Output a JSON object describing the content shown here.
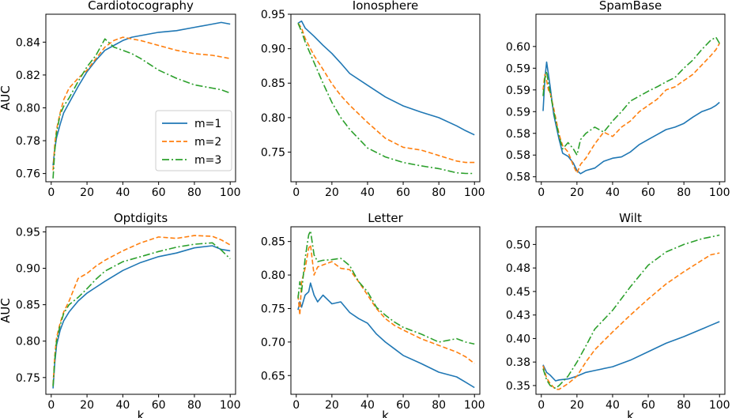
{
  "figure": {
    "xlabel": "k",
    "ylabel": "AUC"
  },
  "legend": {
    "entries": [
      "m=1",
      "m=2",
      "m=3"
    ],
    "placement": "lower right of first panel"
  },
  "series_styles": [
    {
      "name": "m=1",
      "color": "#1f77b4",
      "dash": "solid"
    },
    {
      "name": "m=2",
      "color": "#ff7f0e",
      "dash": "dashed"
    },
    {
      "name": "m=3",
      "color": "#2ca02c",
      "dash": "dashdot"
    }
  ],
  "chart_data": [
    {
      "type": "line",
      "title": "Cardiotocography",
      "xlabel": "",
      "ylabel": "AUC",
      "xlim": [
        -3,
        103
      ],
      "ylim": [
        0.755,
        0.857
      ],
      "xticks": [
        0,
        20,
        40,
        60,
        80,
        100
      ],
      "yticks": [
        0.76,
        0.78,
        0.8,
        0.82,
        0.84
      ],
      "ytick_labels": [
        "0.76",
        "0.78",
        "0.80",
        "0.82",
        "0.84"
      ],
      "x": [
        1,
        2,
        3,
        5,
        7,
        10,
        15,
        20,
        25,
        30,
        35,
        40,
        45,
        50,
        60,
        70,
        80,
        90,
        95,
        100
      ],
      "series": [
        {
          "name": "m=1",
          "values": [
            0.765,
            0.775,
            0.782,
            0.79,
            0.797,
            0.803,
            0.813,
            0.822,
            0.829,
            0.835,
            0.838,
            0.841,
            0.843,
            0.844,
            0.846,
            0.847,
            0.849,
            0.851,
            0.852,
            0.851
          ]
        },
        {
          "name": "m=2",
          "values": [
            0.762,
            0.778,
            0.787,
            0.797,
            0.805,
            0.812,
            0.818,
            0.823,
            0.83,
            0.837,
            0.841,
            0.843,
            0.842,
            0.841,
            0.838,
            0.835,
            0.833,
            0.832,
            0.831,
            0.83
          ]
        },
        {
          "name": "m=3",
          "values": [
            0.757,
            0.774,
            0.785,
            0.796,
            0.801,
            0.806,
            0.816,
            0.825,
            0.832,
            0.842,
            0.837,
            0.835,
            0.833,
            0.83,
            0.823,
            0.818,
            0.814,
            0.812,
            0.811,
            0.809
          ]
        }
      ]
    },
    {
      "type": "line",
      "title": "Ionosphere",
      "xlabel": "",
      "ylabel": "",
      "xlim": [
        -3,
        103
      ],
      "ylim": [
        0.707,
        0.95
      ],
      "xticks": [
        0,
        20,
        40,
        60,
        80,
        100
      ],
      "yticks": [
        0.75,
        0.8,
        0.85,
        0.9,
        0.95
      ],
      "ytick_labels": [
        "0.75",
        "0.80",
        "0.85",
        "0.90",
        "0.95"
      ],
      "x": [
        1,
        3,
        5,
        10,
        15,
        20,
        25,
        30,
        40,
        50,
        60,
        70,
        80,
        90,
        95,
        100
      ],
      "series": [
        {
          "name": "m=1",
          "values": [
            0.937,
            0.94,
            0.93,
            0.918,
            0.905,
            0.893,
            0.879,
            0.864,
            0.847,
            0.83,
            0.817,
            0.808,
            0.8,
            0.788,
            0.781,
            0.775
          ]
        },
        {
          "name": "m=2",
          "values": [
            0.937,
            0.93,
            0.915,
            0.89,
            0.87,
            0.849,
            0.832,
            0.818,
            0.793,
            0.77,
            0.757,
            0.753,
            0.745,
            0.737,
            0.735,
            0.735
          ]
        },
        {
          "name": "m=3",
          "values": [
            0.937,
            0.925,
            0.91,
            0.88,
            0.85,
            0.822,
            0.8,
            0.783,
            0.756,
            0.743,
            0.735,
            0.73,
            0.726,
            0.72,
            0.719,
            0.719
          ]
        }
      ]
    },
    {
      "type": "line",
      "title": "SpamBase",
      "xlabel": "",
      "ylabel": "",
      "xlim": [
        -3,
        103
      ],
      "ylim": [
        0.5782,
        0.6052
      ],
      "xticks": [
        0,
        20,
        40,
        60,
        80,
        100
      ],
      "yticks": [
        0.579,
        0.5825,
        0.586,
        0.5895,
        0.593,
        0.5965,
        0.6
      ],
      "ytick_labels": [
        "0.58",
        "0.58",
        "0.58",
        "0.59",
        "0.59",
        "0.59",
        "0.60"
      ],
      "x": [
        1,
        2,
        3,
        4,
        5,
        7,
        10,
        12,
        15,
        18,
        20,
        22,
        25,
        30,
        35,
        40,
        45,
        50,
        55,
        60,
        65,
        70,
        75,
        80,
        85,
        90,
        95,
        98,
        100
      ],
      "series": [
        {
          "name": "m=1",
          "values": [
            0.5896,
            0.5948,
            0.5975,
            0.5955,
            0.5935,
            0.589,
            0.585,
            0.5828,
            0.5823,
            0.5812,
            0.58,
            0.5795,
            0.58,
            0.5804,
            0.5815,
            0.582,
            0.5822,
            0.583,
            0.5842,
            0.585,
            0.5858,
            0.5866,
            0.587,
            0.5876,
            0.5886,
            0.5895,
            0.59,
            0.5905,
            0.591
          ]
        },
        {
          "name": "m=2",
          "values": [
            0.593,
            0.5955,
            0.5945,
            0.593,
            0.5925,
            0.59,
            0.5858,
            0.584,
            0.583,
            0.5808,
            0.5796,
            0.581,
            0.582,
            0.5843,
            0.5862,
            0.5855,
            0.587,
            0.588,
            0.5895,
            0.5905,
            0.5915,
            0.593,
            0.5935,
            0.5945,
            0.5955,
            0.597,
            0.5985,
            0.5995,
            0.6005
          ]
        },
        {
          "name": "m=3",
          "values": [
            0.592,
            0.595,
            0.596,
            0.594,
            0.5925,
            0.5895,
            0.5855,
            0.5835,
            0.5845,
            0.5835,
            0.5825,
            0.585,
            0.586,
            0.587,
            0.5862,
            0.588,
            0.5895,
            0.5912,
            0.592,
            0.5928,
            0.5935,
            0.5943,
            0.595,
            0.5965,
            0.5978,
            0.5995,
            0.601,
            0.6015,
            0.6005
          ]
        }
      ]
    },
    {
      "type": "line",
      "title": "Optdigits",
      "xlabel": "k",
      "ylabel": "AUC",
      "xlim": [
        -3,
        103
      ],
      "ylim": [
        0.727,
        0.957
      ],
      "xticks": [
        0,
        20,
        40,
        60,
        80,
        100
      ],
      "yticks": [
        0.75,
        0.8,
        0.85,
        0.9,
        0.95
      ],
      "ytick_labels": [
        "0.75",
        "0.80",
        "0.85",
        "0.90",
        "0.95"
      ],
      "x": [
        1,
        2,
        3,
        5,
        7,
        10,
        15,
        20,
        25,
        30,
        40,
        50,
        60,
        70,
        80,
        90,
        95,
        100
      ],
      "series": [
        {
          "name": "m=1",
          "values": [
            0.735,
            0.77,
            0.795,
            0.815,
            0.828,
            0.84,
            0.855,
            0.866,
            0.874,
            0.882,
            0.897,
            0.908,
            0.916,
            0.921,
            0.928,
            0.931,
            0.926,
            0.924
          ]
        },
        {
          "name": "m=2",
          "values": [
            0.74,
            0.78,
            0.805,
            0.825,
            0.84,
            0.855,
            0.886,
            0.893,
            0.903,
            0.911,
            0.924,
            0.935,
            0.943,
            0.941,
            0.945,
            0.944,
            0.939,
            0.932
          ]
        },
        {
          "name": "m=3",
          "values": [
            0.738,
            0.775,
            0.8,
            0.822,
            0.838,
            0.85,
            0.86,
            0.872,
            0.885,
            0.896,
            0.909,
            0.916,
            0.923,
            0.929,
            0.933,
            0.935,
            0.925,
            0.913
          ]
        }
      ]
    },
    {
      "type": "line",
      "title": "Letter",
      "xlabel": "k",
      "ylabel": "",
      "xlim": [
        -3,
        103
      ],
      "ylim": [
        0.622,
        0.872
      ],
      "xticks": [
        0,
        20,
        40,
        60,
        80,
        100
      ],
      "yticks": [
        0.65,
        0.7,
        0.75,
        0.8,
        0.85
      ],
      "ytick_labels": [
        "0.65",
        "0.70",
        "0.75",
        "0.80",
        "0.85"
      ],
      "x": [
        1,
        2,
        3,
        5,
        7,
        8,
        10,
        12,
        15,
        20,
        25,
        30,
        35,
        40,
        45,
        50,
        55,
        60,
        70,
        80,
        90,
        95,
        100
      ],
      "series": [
        {
          "name": "m=1",
          "values": [
            0.748,
            0.76,
            0.752,
            0.77,
            0.775,
            0.788,
            0.77,
            0.76,
            0.77,
            0.757,
            0.76,
            0.744,
            0.735,
            0.728,
            0.712,
            0.7,
            0.69,
            0.68,
            0.668,
            0.655,
            0.648,
            0.64,
            0.632
          ]
        },
        {
          "name": "m=2",
          "values": [
            0.77,
            0.74,
            0.79,
            0.81,
            0.84,
            0.845,
            0.8,
            0.812,
            0.815,
            0.82,
            0.81,
            0.808,
            0.79,
            0.77,
            0.75,
            0.735,
            0.725,
            0.718,
            0.705,
            0.695,
            0.685,
            0.678,
            0.668
          ]
        },
        {
          "name": "m=3",
          "values": [
            0.765,
            0.79,
            0.775,
            0.825,
            0.86,
            0.866,
            0.83,
            0.82,
            0.822,
            0.823,
            0.825,
            0.814,
            0.79,
            0.775,
            0.752,
            0.74,
            0.73,
            0.722,
            0.712,
            0.7,
            0.705,
            0.7,
            0.697
          ]
        }
      ]
    },
    {
      "type": "line",
      "title": "Wilt",
      "xlabel": "k",
      "ylabel": "",
      "xlim": [
        -3,
        103
      ],
      "ylim": [
        0.3407,
        0.5188
      ],
      "xticks": [
        0,
        20,
        40,
        60,
        80,
        100
      ],
      "yticks": [
        0.35,
        0.375,
        0.4,
        0.425,
        0.45,
        0.475,
        0.5
      ],
      "ytick_labels": [
        "0.35",
        "0.38",
        "0.40",
        "0.43",
        "0.45",
        "0.48",
        "0.50"
      ],
      "x": [
        1,
        3,
        5,
        8,
        10,
        15,
        20,
        25,
        30,
        40,
        50,
        60,
        70,
        80,
        90,
        95,
        100
      ],
      "series": [
        {
          "name": "m=1",
          "values": [
            0.372,
            0.364,
            0.361,
            0.355,
            0.356,
            0.357,
            0.36,
            0.364,
            0.366,
            0.37,
            0.377,
            0.386,
            0.395,
            0.402,
            0.41,
            0.414,
            0.418
          ]
        },
        {
          "name": "m=2",
          "values": [
            0.371,
            0.358,
            0.352,
            0.346,
            0.346,
            0.352,
            0.36,
            0.375,
            0.388,
            0.407,
            0.425,
            0.442,
            0.458,
            0.471,
            0.483,
            0.489,
            0.491
          ]
        },
        {
          "name": "m=3",
          "values": [
            0.368,
            0.356,
            0.35,
            0.347,
            0.35,
            0.36,
            0.375,
            0.392,
            0.41,
            0.43,
            0.455,
            0.478,
            0.492,
            0.5,
            0.506,
            0.508,
            0.51
          ]
        }
      ]
    }
  ]
}
